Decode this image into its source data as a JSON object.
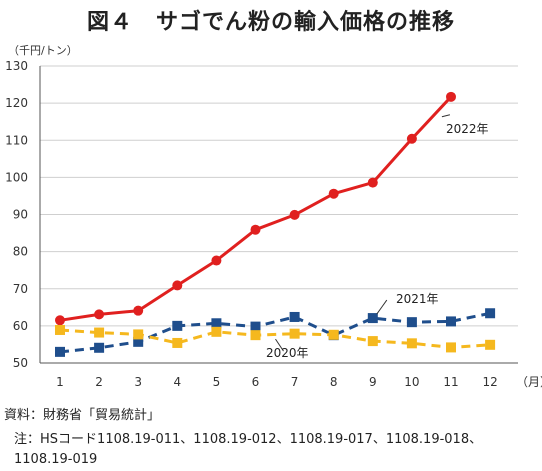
{
  "title": "図４　サゴでん粉の輸入価格の推移",
  "unit_label": "（千円/トン）",
  "source": {
    "label": "資料：",
    "text": "財務省「貿易統計」"
  },
  "note": {
    "label": "注：",
    "text": "HSコード1108.19-011、1108.19-012、1108.19-017、1108.19-018、1108.19-019"
  },
  "chart_data": {
    "type": "line",
    "x": [
      1,
      2,
      3,
      4,
      5,
      6,
      7,
      8,
      9,
      10,
      11,
      12
    ],
    "xlabel": "（月）",
    "ylabel": "（千円/トン）",
    "ylim": [
      50,
      130
    ],
    "yticks": [
      50,
      60,
      70,
      80,
      90,
      100,
      110,
      120,
      130
    ],
    "grid": true,
    "series": [
      {
        "name": "2022年",
        "color": "#e0201f",
        "style": "solid",
        "marker": "circle",
        "values": [
          61.5,
          63.1,
          64.1,
          70.9,
          77.6,
          85.9,
          89.9,
          95.6,
          98.6,
          110.4,
          121.7,
          null
        ]
      },
      {
        "name": "2021年",
        "color": "#1f4e8c",
        "style": "dashed",
        "marker": "square",
        "values": [
          53.0,
          54.1,
          55.7,
          60.0,
          60.7,
          59.8,
          62.4,
          57.5,
          62.1,
          61.0,
          61.2,
          63.4
        ]
      },
      {
        "name": "2020年",
        "color": "#f5b81e",
        "style": "dashed",
        "marker": "square",
        "values": [
          58.9,
          58.2,
          57.7,
          55.4,
          58.4,
          57.5,
          57.9,
          57.6,
          55.9,
          55.3,
          54.2,
          54.9
        ]
      }
    ]
  }
}
